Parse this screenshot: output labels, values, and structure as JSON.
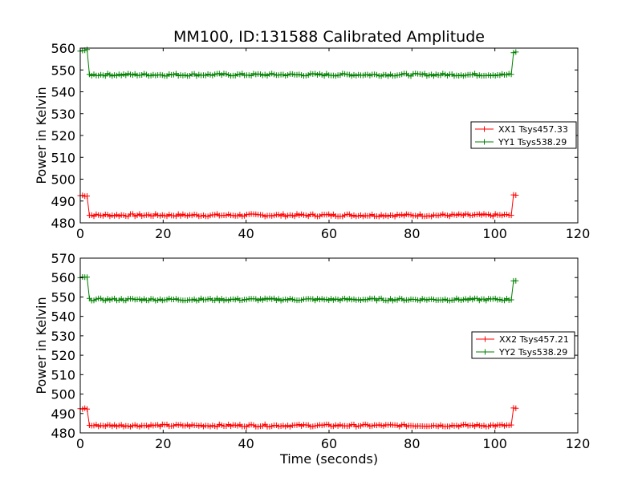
{
  "chart_data": {
    "title": "MM100, ID:131588 Calibrated Amplitude",
    "xlabel": "Time (seconds)",
    "type": "line",
    "series_colors": {
      "XX": "#ff0000",
      "YY": "#008000"
    },
    "legend_position": "right",
    "grid": false,
    "panels": [
      {
        "ylabel": "Power in Kelvin",
        "xlim": [
          0,
          120
        ],
        "ylim": [
          480,
          560
        ],
        "xticks": [
          "0",
          "20",
          "40",
          "60",
          "80",
          "100",
          "120"
        ],
        "yticks": [
          "480",
          "490",
          "500",
          "510",
          "520",
          "530",
          "540",
          "550",
          "560"
        ],
        "series": [
          {
            "name": "XX1 Tsys457.33",
            "color": "#ff0000",
            "baseline": 483.5,
            "edge_level": 492.5,
            "end_level": 492.5
          },
          {
            "name": "YY1 Tsys538.29",
            "color": "#008000",
            "baseline": 547.8,
            "edge_level": 559,
            "end_level": 558
          }
        ]
      },
      {
        "ylabel": "Power in Kelvin",
        "xlim": [
          0,
          120
        ],
        "ylim": [
          480,
          570
        ],
        "xticks": [
          "0",
          "20",
          "40",
          "60",
          "80",
          "100",
          "120"
        ],
        "yticks": [
          "480",
          "490",
          "500",
          "510",
          "520",
          "530",
          "540",
          "550",
          "560",
          "570"
        ],
        "series": [
          {
            "name": "XX2 Tsys457.21",
            "color": "#ff0000",
            "baseline": 483.8,
            "edge_level": 492.5,
            "end_level": 492.5
          },
          {
            "name": "YY2 Tsys538.29",
            "color": "#008000",
            "baseline": 548.7,
            "edge_level": 560,
            "end_level": 558.5
          }
        ]
      }
    ]
  }
}
